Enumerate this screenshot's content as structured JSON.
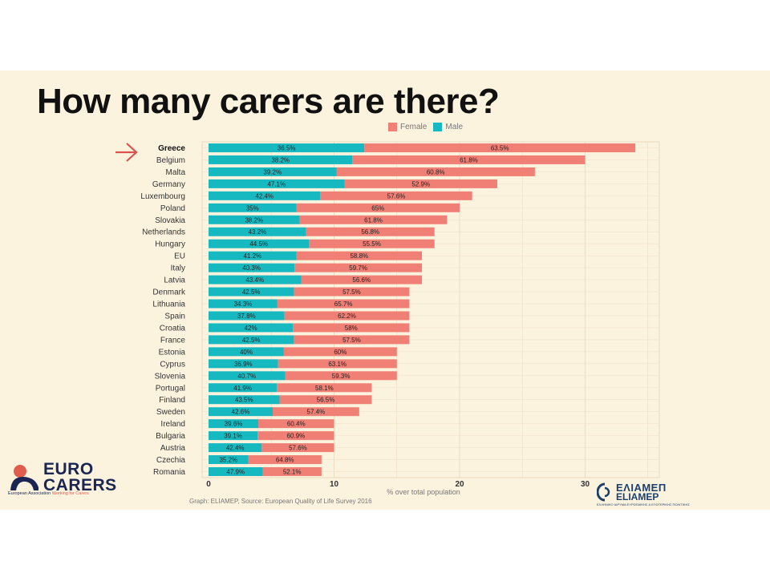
{
  "title": "How many carers are there?",
  "caption": "Graph: ELIAMEP, Source: European Quality of Life Survey 2016",
  "logos": {
    "eurocarers_line1": "EURO",
    "eurocarers_line2": "CARERS",
    "eurocarers_tag_a": "European Association",
    "eurocarers_tag_b": "Working for Carers",
    "eliamep_greek": "ΕΛΙΑΜΕΠ",
    "eliamep_latin": "ELIAMEP",
    "eliamep_sub": "ΕΛΛΗΝΙΚΟ ΙΔΡΥΜΑ ΕΥΡΩΠΑΪΚΗΣ & ΕΞΩΤΕΡΙΚΗΣ ΠΟΛΙΤΙΚΗΣ"
  },
  "colors": {
    "female": "#f07f75",
    "male": "#17b9c1",
    "arrow": "#d9534f"
  },
  "icons": {
    "pointer": "right-arrow-icon"
  },
  "chart_data": {
    "type": "bar",
    "orientation": "horizontal",
    "stacked": true,
    "highlighted_category": "Greece",
    "categories": [
      "Greece",
      "Belgium",
      "Malta",
      "Germany",
      "Luxembourg",
      "Poland",
      "Slovakia",
      "Netherlands",
      "Hungary",
      "EU",
      "Italy",
      "Latvia",
      "Denmark",
      "Lithuania",
      "Spain",
      "Croatia",
      "France",
      "Estonia",
      "Cyprus",
      "Slovenia",
      "Portugal",
      "Finland",
      "Sweden",
      "Ireland",
      "Bulgaria",
      "Austria",
      "Czechia",
      "Romania"
    ],
    "totals": [
      34,
      30,
      26,
      23,
      21,
      20,
      19,
      18,
      18,
      17,
      17,
      17,
      16,
      16,
      16,
      16,
      16,
      15,
      15,
      15,
      13,
      13,
      12,
      10,
      10,
      10,
      9,
      9
    ],
    "series": [
      {
        "name": "Male",
        "share_labels": [
          "36.5%",
          "38.2%",
          "39.2%",
          "47.1%",
          "42.4%",
          "35%",
          "38.2%",
          "43.2%",
          "44.5%",
          "41.2%",
          "40.3%",
          "43.4%",
          "42.5%",
          "34.3%",
          "37.8%",
          "42%",
          "42.5%",
          "40%",
          "36.9%",
          "40.7%",
          "41.9%",
          "43.5%",
          "42.6%",
          "39.6%",
          "39.1%",
          "42.4%",
          "35.2%",
          "47.9%"
        ]
      },
      {
        "name": "Female",
        "share_labels": [
          "63.5%",
          "61.8%",
          "60.8%",
          "52.9%",
          "57.6%",
          "65%",
          "61.8%",
          "56.8%",
          "55.5%",
          "58.8%",
          "59.7%",
          "56.6%",
          "57.5%",
          "65.7%",
          "62.2%",
          "58%",
          "57.5%",
          "60%",
          "63.1%",
          "59.3%",
          "58.1%",
          "56.5%",
          "57.4%",
          "60.4%",
          "60.9%",
          "57.6%",
          "64.8%",
          "52.1%"
        ]
      }
    ],
    "xlabel": "% over total population",
    "xlim": [
      0,
      36
    ],
    "xticks": [
      0,
      10,
      20,
      30
    ],
    "legend_position": "top",
    "grid": true
  }
}
